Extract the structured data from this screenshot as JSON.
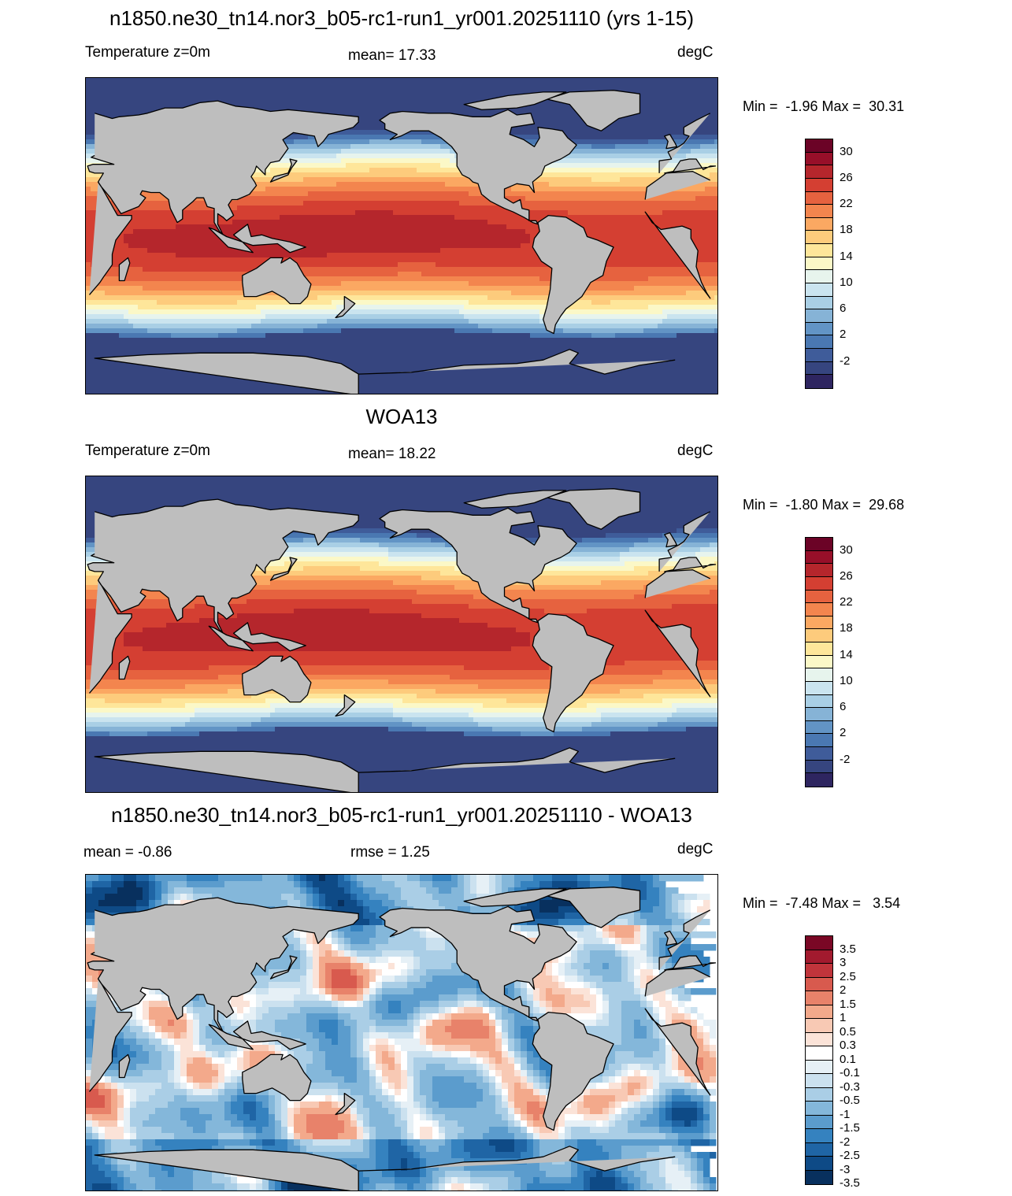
{
  "panels": [
    {
      "id": "model",
      "title": "n1850.ne30_tn14.nor3_b05-rc1-run1_yr001.20251110 (yrs 1-15)",
      "left_label": "Temperature z=0m",
      "center_label": "mean=  17.33",
      "units": "degC",
      "minmax": "Min =  -1.96 Max =  30.31",
      "colormap": "sst",
      "colors": [
        "#2e2560",
        "#36457f",
        "#3f5c9a",
        "#4a78b2",
        "#6294c5",
        "#86b3d6",
        "#a9cfe5",
        "#cae4ef",
        "#e7f4ed",
        "#fbf8c7",
        "#fee69a",
        "#fdcb7c",
        "#fba862",
        "#f3854e",
        "#e6623f",
        "#d43f32",
        "#b5262c",
        "#970f29",
        "#6b0326"
      ],
      "tick_labels": [
        "30",
        "26",
        "22",
        "18",
        "14",
        "10",
        "6",
        "2",
        "-2"
      ]
    },
    {
      "id": "obs",
      "title": "WOA13",
      "left_label": "Temperature z=0m",
      "center_label": "mean=  18.22",
      "units": "degC",
      "minmax": "Min =  -1.80 Max =  29.68",
      "colormap": "sst",
      "colors": [
        "#2e2560",
        "#36457f",
        "#3f5c9a",
        "#4a78b2",
        "#6294c5",
        "#86b3d6",
        "#a9cfe5",
        "#cae4ef",
        "#e7f4ed",
        "#fbf8c7",
        "#fee69a",
        "#fdcb7c",
        "#fba862",
        "#f3854e",
        "#e6623f",
        "#d43f32",
        "#b5262c",
        "#970f29",
        "#6b0326"
      ],
      "tick_labels": [
        "30",
        "26",
        "22",
        "18",
        "14",
        "10",
        "6",
        "2",
        "-2"
      ]
    },
    {
      "id": "diff",
      "title": "n1850.ne30_tn14.nor3_b05-rc1-run1_yr001.20251110 - WOA13",
      "left_label": "mean =  -0.86",
      "center_label": "rmse =   1.25",
      "units": "degC",
      "minmax": "Min =  -7.48 Max =   3.54",
      "colormap": "diff",
      "colors": [
        "#08305e",
        "#0e4a86",
        "#1f65a5",
        "#3582bf",
        "#5b9ccd",
        "#84b7da",
        "#aacee6",
        "#cbe1ef",
        "#e6f0f6",
        "#ffffff",
        "#fbe3d8",
        "#f8c9b4",
        "#f3a98b",
        "#e8826a",
        "#d85a4e",
        "#c0343b",
        "#a21a2e",
        "#7a0725"
      ],
      "tick_labels": [
        "3.5",
        "3",
        "2.5",
        "2",
        "1.5",
        "1",
        "0.5",
        "0.3",
        "0.1",
        "-0.1",
        "-0.3",
        "-0.5",
        "-1",
        "-1.5",
        "-2",
        "-2.5",
        "-3",
        "-3.5"
      ]
    }
  ]
}
